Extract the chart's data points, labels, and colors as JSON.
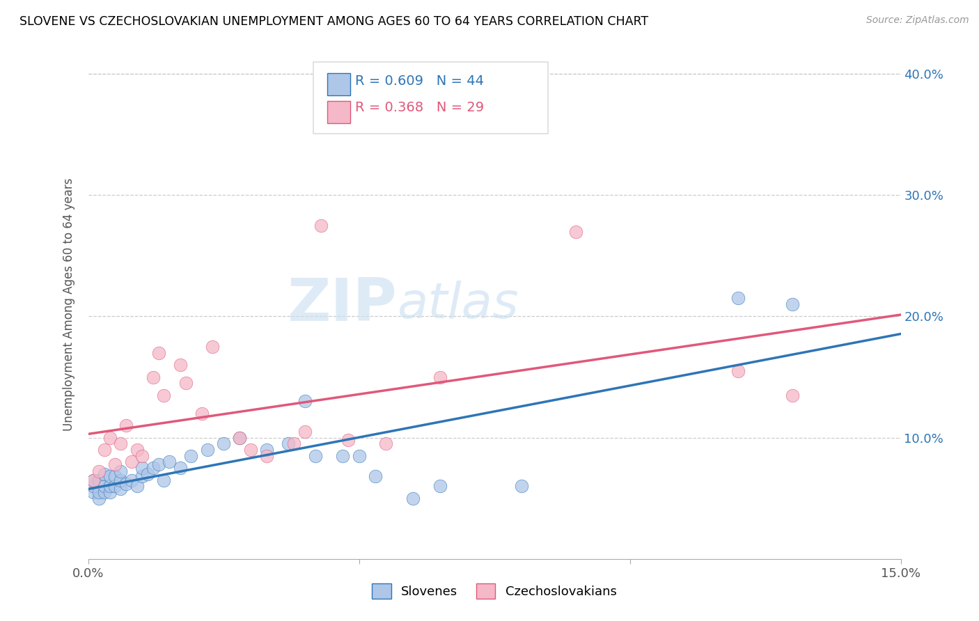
{
  "title": "SLOVENE VS CZECHOSLOVAKIAN UNEMPLOYMENT AMONG AGES 60 TO 64 YEARS CORRELATION CHART",
  "source": "Source: ZipAtlas.com",
  "ylabel": "Unemployment Among Ages 60 to 64 years",
  "xlim": [
    0,
    0.15
  ],
  "ylim": [
    0,
    0.42
  ],
  "blue_color": "#AEC6E8",
  "pink_color": "#F4B8C8",
  "blue_line_color": "#2E75B6",
  "pink_line_color": "#E0587A",
  "legend_blue_R": "0.609",
  "legend_blue_N": "44",
  "legend_pink_R": "0.368",
  "legend_pink_N": "29",
  "legend_blue_label": "Slovenes",
  "legend_pink_label": "Czechoslovakians",
  "watermark_left": "ZIP",
  "watermark_right": "atlas",
  "slovene_x": [
    0.001,
    0.001,
    0.001,
    0.002,
    0.002,
    0.002,
    0.003,
    0.003,
    0.003,
    0.004,
    0.004,
    0.004,
    0.005,
    0.005,
    0.006,
    0.006,
    0.006,
    0.007,
    0.008,
    0.009,
    0.01,
    0.01,
    0.011,
    0.012,
    0.013,
    0.014,
    0.015,
    0.017,
    0.019,
    0.022,
    0.025,
    0.028,
    0.033,
    0.037,
    0.04,
    0.042,
    0.047,
    0.05,
    0.053,
    0.06,
    0.065,
    0.08,
    0.12,
    0.13
  ],
  "slovene_y": [
    0.055,
    0.06,
    0.065,
    0.05,
    0.055,
    0.065,
    0.055,
    0.06,
    0.07,
    0.055,
    0.06,
    0.068,
    0.06,
    0.068,
    0.058,
    0.065,
    0.072,
    0.062,
    0.065,
    0.06,
    0.068,
    0.075,
    0.07,
    0.075,
    0.078,
    0.065,
    0.08,
    0.075,
    0.085,
    0.09,
    0.095,
    0.1,
    0.09,
    0.095,
    0.13,
    0.085,
    0.085,
    0.085,
    0.068,
    0.05,
    0.06,
    0.06,
    0.215,
    0.21
  ],
  "czech_x": [
    0.001,
    0.002,
    0.003,
    0.004,
    0.005,
    0.006,
    0.007,
    0.008,
    0.009,
    0.01,
    0.012,
    0.013,
    0.014,
    0.017,
    0.018,
    0.021,
    0.023,
    0.028,
    0.03,
    0.033,
    0.038,
    0.04,
    0.043,
    0.048,
    0.055,
    0.065,
    0.09,
    0.12,
    0.13
  ],
  "czech_y": [
    0.065,
    0.072,
    0.09,
    0.1,
    0.078,
    0.095,
    0.11,
    0.08,
    0.09,
    0.085,
    0.15,
    0.17,
    0.135,
    0.16,
    0.145,
    0.12,
    0.175,
    0.1,
    0.09,
    0.085,
    0.095,
    0.105,
    0.275,
    0.098,
    0.095,
    0.15,
    0.27,
    0.155,
    0.135
  ]
}
